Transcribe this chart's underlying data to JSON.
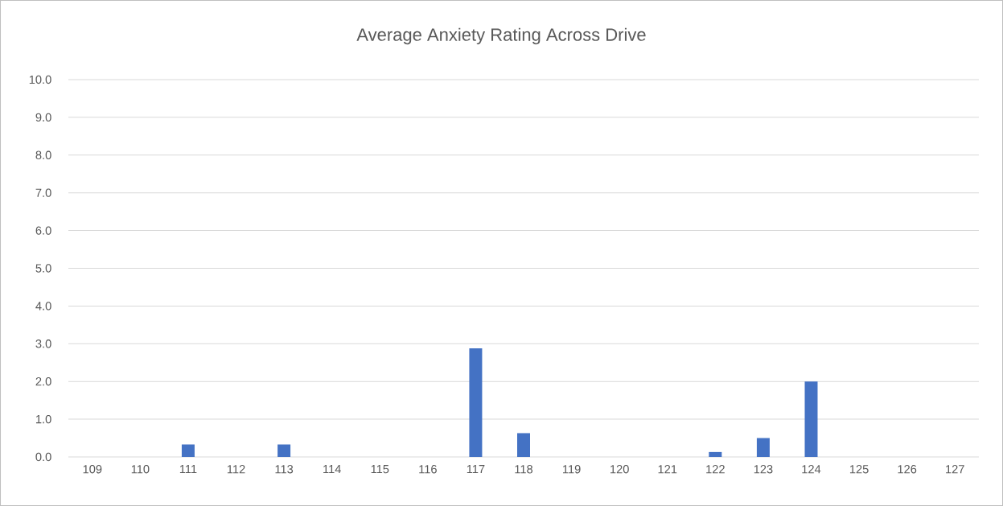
{
  "chart_data": {
    "type": "bar",
    "title": "Average Anxiety Rating Across Drive",
    "categories": [
      "109",
      "110",
      "111",
      "112",
      "113",
      "114",
      "115",
      "116",
      "117",
      "118",
      "119",
      "120",
      "121",
      "122",
      "123",
      "124",
      "125",
      "126",
      "127"
    ],
    "values": [
      0,
      0,
      0.33,
      0,
      0.33,
      0,
      0,
      0,
      2.88,
      0.63,
      0,
      0,
      0,
      0.13,
      0.5,
      2.0,
      0,
      0,
      0
    ],
    "color": "#4472c4",
    "ylim": [
      0,
      10
    ],
    "yticks": [
      {
        "value": 0,
        "label": "0.0"
      },
      {
        "value": 1,
        "label": "1.0"
      },
      {
        "value": 2,
        "label": "2.0"
      },
      {
        "value": 3,
        "label": "3.0"
      },
      {
        "value": 4,
        "label": "4.0"
      },
      {
        "value": 5,
        "label": "5.0"
      },
      {
        "value": 6,
        "label": "6.0"
      },
      {
        "value": 7,
        "label": "7.0"
      },
      {
        "value": 8,
        "label": "8.0"
      },
      {
        "value": 9,
        "label": "9.0"
      },
      {
        "value": 10,
        "label": "10.0"
      }
    ],
    "grid": "y"
  }
}
